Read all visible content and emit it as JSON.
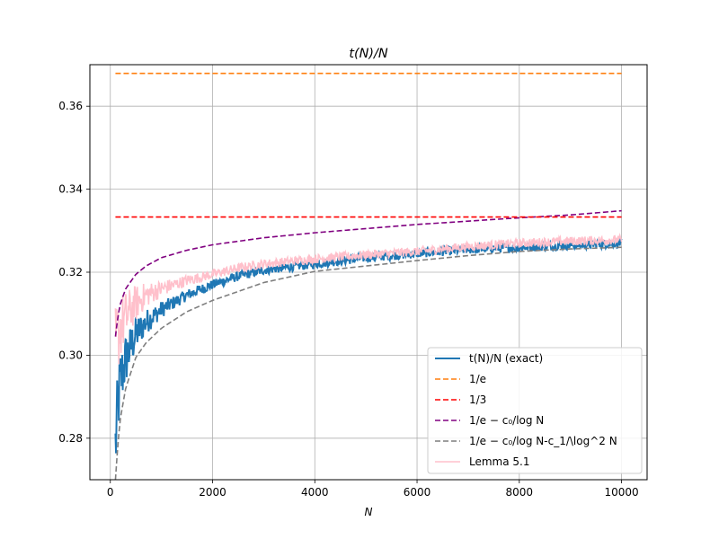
{
  "chart_data": {
    "type": "line",
    "title": "t(N)/N",
    "xlabel": "N",
    "ylabel": "",
    "xlim": [
      -400,
      10500
    ],
    "ylim": [
      0.27,
      0.37
    ],
    "xticks": [
      0,
      2000,
      4000,
      6000,
      8000,
      10000
    ],
    "xtick_labels": [
      "0",
      "2000",
      "4000",
      "6000",
      "8000",
      "10000"
    ],
    "yticks": [
      0.28,
      0.3,
      0.32,
      0.34,
      0.36
    ],
    "ytick_labels": [
      "0.28",
      "0.30",
      "0.32",
      "0.34",
      "0.36"
    ],
    "grid": true,
    "legend_position": "lower-right",
    "series": [
      {
        "name": "t(N)/N (exact)",
        "color": "#1f77b4",
        "dash": "solid",
        "noisy": true,
        "x": [
          100,
          150,
          200,
          300,
          400,
          500,
          700,
          1000,
          1500,
          2000,
          2500,
          3000,
          4000,
          5000,
          6000,
          7000,
          8000,
          9000,
          10000
        ],
        "y": [
          0.278,
          0.288,
          0.294,
          0.299,
          0.302,
          0.305,
          0.308,
          0.311,
          0.3145,
          0.317,
          0.319,
          0.3205,
          0.322,
          0.3235,
          0.3245,
          0.3255,
          0.326,
          0.3265,
          0.327
        ]
      },
      {
        "name": "1/e",
        "color": "#ff7f0e",
        "dash": "dashed",
        "x": [
          100,
          10000
        ],
        "y": [
          0.3679,
          0.3679
        ]
      },
      {
        "name": "1/3",
        "color": "#ff0000",
        "dash": "dashed",
        "x": [
          100,
          10000
        ],
        "y": [
          0.3333,
          0.3333
        ]
      },
      {
        "name": "1/e − c₀/log N",
        "color": "#800080",
        "dash": "dashed",
        "x": [
          100,
          150,
          200,
          300,
          500,
          700,
          1000,
          1500,
          2000,
          3000,
          4000,
          5000,
          6000,
          7000,
          8000,
          9000,
          10000
        ],
        "y": [
          0.3045,
          0.3095,
          0.3125,
          0.316,
          0.3195,
          0.3215,
          0.3235,
          0.3253,
          0.3266,
          0.3283,
          0.3295,
          0.3305,
          0.3315,
          0.3323,
          0.3331,
          0.3338,
          0.3348
        ]
      },
      {
        "name": "1/e − c₀/log N-c_1/\\log^2 N",
        "color": "#7f7f7f",
        "dash": "dashed",
        "x": [
          100,
          150,
          200,
          300,
          500,
          700,
          1000,
          1500,
          2000,
          3000,
          4000,
          5000,
          6000,
          7000,
          8000,
          9000,
          10000
        ],
        "y": [
          0.27,
          0.279,
          0.285,
          0.292,
          0.2995,
          0.303,
          0.3065,
          0.3105,
          0.3132,
          0.3175,
          0.3202,
          0.3215,
          0.3228,
          0.324,
          0.325,
          0.3256,
          0.326
        ]
      },
      {
        "name": "Lemma 5.1",
        "color": "#ffc0cb",
        "dash": "solid",
        "noisy": true,
        "x": [
          100,
          150,
          200,
          300,
          400,
          500,
          700,
          1000,
          1500,
          2000,
          2500,
          3000,
          4000,
          5000,
          6000,
          7000,
          8000,
          9000,
          10000
        ],
        "y": [
          0.302,
          0.305,
          0.307,
          0.309,
          0.311,
          0.3125,
          0.3145,
          0.316,
          0.318,
          0.3195,
          0.321,
          0.322,
          0.3232,
          0.3242,
          0.325,
          0.3262,
          0.327,
          0.3275,
          0.3278
        ]
      }
    ]
  }
}
